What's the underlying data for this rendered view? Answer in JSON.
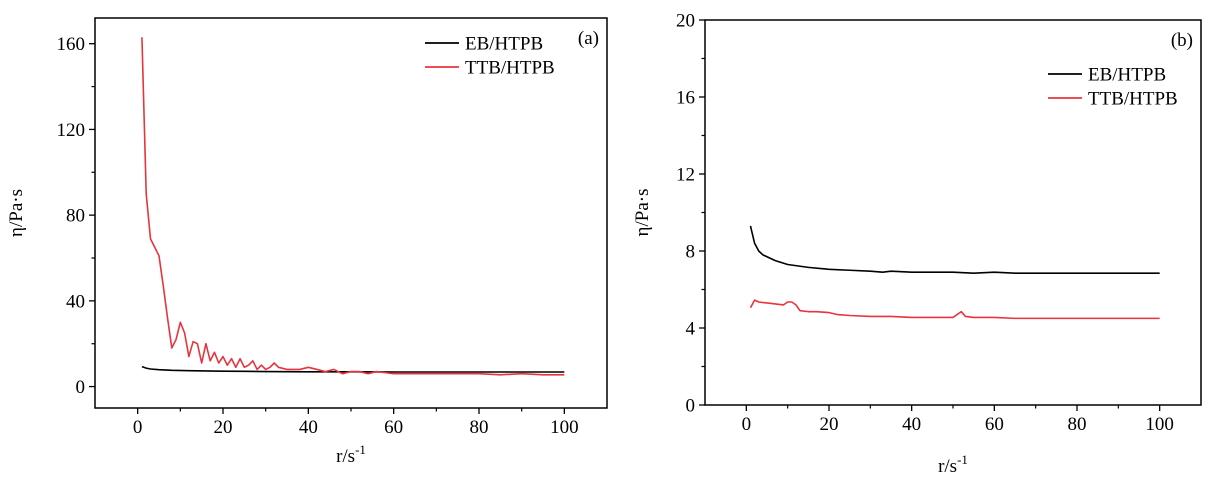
{
  "chart_data": [
    {
      "panel_label": "(a)",
      "type": "line",
      "xlabel": "r/s",
      "xlabel_sup": "-1",
      "ylabel": "η/Pa·s",
      "xlim": [
        -10,
        110
      ],
      "ylim": [
        -10,
        172
      ],
      "xticks": [
        0,
        20,
        40,
        60,
        80,
        100
      ],
      "yticks": [
        0,
        40,
        80,
        120,
        160
      ],
      "legend_position": "top-right",
      "series": [
        {
          "name": "EB/HTPB",
          "color": "#000000",
          "points": [
            [
              1,
              9.3
            ],
            [
              2,
              8.6
            ],
            [
              3,
              8.2
            ],
            [
              5,
              7.9
            ],
            [
              8,
              7.6
            ],
            [
              12,
              7.4
            ],
            [
              16,
              7.3
            ],
            [
              20,
              7.2
            ],
            [
              25,
              7.1
            ],
            [
              30,
              7.0
            ],
            [
              40,
              6.9
            ],
            [
              50,
              6.9
            ],
            [
              60,
              6.8
            ],
            [
              70,
              6.8
            ],
            [
              80,
              6.8
            ],
            [
              90,
              6.8
            ],
            [
              100,
              6.8
            ]
          ]
        },
        {
          "name": "TTB/HTPB",
          "color": "#e8343c",
          "points": [
            [
              1,
              163
            ],
            [
              2,
              90
            ],
            [
              3,
              69
            ],
            [
              4,
              65
            ],
            [
              5,
              61
            ],
            [
              6,
              47
            ],
            [
              7,
              32
            ],
            [
              8,
              18
            ],
            [
              9,
              22
            ],
            [
              10,
              30
            ],
            [
              11,
              25
            ],
            [
              12,
              14
            ],
            [
              13,
              21
            ],
            [
              14,
              20
            ],
            [
              15,
              11
            ],
            [
              16,
              20
            ],
            [
              17,
              12
            ],
            [
              18,
              16
            ],
            [
              19,
              11
            ],
            [
              20,
              14
            ],
            [
              21,
              10
            ],
            [
              22,
              13
            ],
            [
              23,
              9
            ],
            [
              24,
              13
            ],
            [
              25,
              9
            ],
            [
              26,
              10
            ],
            [
              27,
              12
            ],
            [
              28,
              8
            ],
            [
              29,
              10
            ],
            [
              30,
              8
            ],
            [
              31,
              9
            ],
            [
              32,
              11
            ],
            [
              33,
              9
            ],
            [
              35,
              8
            ],
            [
              38,
              8
            ],
            [
              40,
              9
            ],
            [
              42,
              8
            ],
            [
              44,
              7
            ],
            [
              46,
              8
            ],
            [
              48,
              6
            ],
            [
              50,
              7
            ],
            [
              52,
              7
            ],
            [
              54,
              6
            ],
            [
              56,
              7
            ],
            [
              60,
              6
            ],
            [
              65,
              6
            ],
            [
              70,
              6
            ],
            [
              75,
              6
            ],
            [
              80,
              6
            ],
            [
              85,
              5.5
            ],
            [
              90,
              6
            ],
            [
              95,
              5.5
            ],
            [
              100,
              5.5
            ]
          ]
        }
      ]
    },
    {
      "panel_label": "(b)",
      "type": "line",
      "xlabel": "r/s",
      "xlabel_sup": "-1",
      "ylabel": "η/Pa·s",
      "xlim": [
        -10,
        110
      ],
      "ylim": [
        0,
        20
      ],
      "xticks": [
        0,
        20,
        40,
        60,
        80,
        100
      ],
      "yticks": [
        0,
        4,
        8,
        12,
        16,
        20
      ],
      "legend_position": "top-right",
      "series": [
        {
          "name": "EB/HTPB",
          "color": "#000000",
          "points": [
            [
              1,
              9.3
            ],
            [
              2,
              8.4
            ],
            [
              3,
              8.0
            ],
            [
              4,
              7.8
            ],
            [
              5,
              7.7
            ],
            [
              7,
              7.5
            ],
            [
              10,
              7.3
            ],
            [
              15,
              7.15
            ],
            [
              20,
              7.05
            ],
            [
              25,
              7.0
            ],
            [
              30,
              6.95
            ],
            [
              33,
              6.9
            ],
            [
              35,
              6.95
            ],
            [
              40,
              6.9
            ],
            [
              45,
              6.9
            ],
            [
              50,
              6.9
            ],
            [
              55,
              6.85
            ],
            [
              60,
              6.9
            ],
            [
              65,
              6.85
            ],
            [
              70,
              6.85
            ],
            [
              80,
              6.85
            ],
            [
              90,
              6.85
            ],
            [
              100,
              6.85
            ]
          ]
        },
        {
          "name": "TTB/HTPB",
          "color": "#e8343c",
          "points": [
            [
              1,
              5.05
            ],
            [
              2,
              5.45
            ],
            [
              3,
              5.35
            ],
            [
              5,
              5.3
            ],
            [
              7,
              5.25
            ],
            [
              9,
              5.2
            ],
            [
              10,
              5.35
            ],
            [
              11,
              5.35
            ],
            [
              12,
              5.2
            ],
            [
              13,
              4.9
            ],
            [
              15,
              4.85
            ],
            [
              17,
              4.85
            ],
            [
              20,
              4.8
            ],
            [
              22,
              4.7
            ],
            [
              25,
              4.65
            ],
            [
              30,
              4.6
            ],
            [
              35,
              4.6
            ],
            [
              40,
              4.55
            ],
            [
              45,
              4.55
            ],
            [
              50,
              4.55
            ],
            [
              52,
              4.85
            ],
            [
              53,
              4.6
            ],
            [
              55,
              4.55
            ],
            [
              60,
              4.55
            ],
            [
              65,
              4.5
            ],
            [
              70,
              4.5
            ],
            [
              75,
              4.5
            ],
            [
              80,
              4.5
            ],
            [
              90,
              4.5
            ],
            [
              100,
              4.5
            ]
          ]
        }
      ]
    }
  ]
}
